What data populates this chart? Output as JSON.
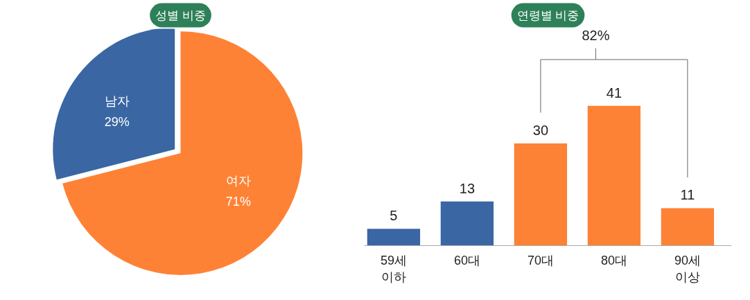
{
  "chart_data": [
    {
      "type": "pie",
      "title": "성별 비중",
      "categories": [
        "남자",
        "여자"
      ],
      "values": [
        29,
        71
      ],
      "colors": [
        "#3a66a3",
        "#fe8235"
      ],
      "value_labels": [
        "29%",
        "71%"
      ]
    },
    {
      "type": "bar",
      "title": "연령별 비중",
      "categories": [
        "59세\n이하",
        "60대",
        "70대",
        "80대",
        "90세\n이상"
      ],
      "values": [
        5,
        13,
        30,
        41,
        11
      ],
      "colors": [
        "#3a66a3",
        "#3a66a3",
        "#fe8235",
        "#fe8235",
        "#fe8235"
      ],
      "data_labels": true,
      "tick_labels": "x",
      "grid": false,
      "annotations": [
        "82%"
      ]
    }
  ]
}
